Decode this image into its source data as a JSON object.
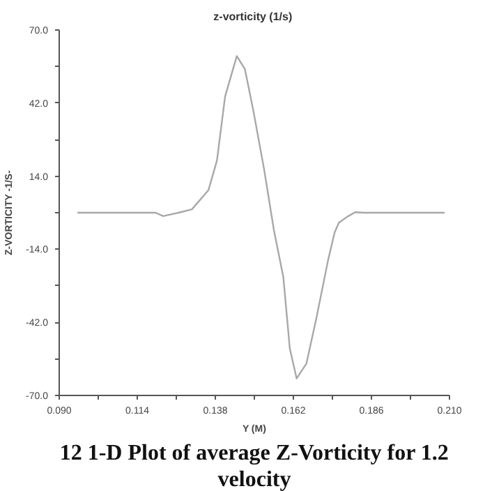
{
  "chart_data": {
    "type": "line",
    "title": "z-vorticity  (1/s)",
    "xlabel": "Y (M)",
    "ylabel": "Z-VORTICITY -1/S-",
    "annotations": [
      "12 1-D Plot of average Z-Vorticity for 1.2 velocity"
    ],
    "series": [
      {
        "color": "#a8a8a8",
        "x": [
          0.0956,
          0.1196,
          0.122,
          0.1267,
          0.1308,
          0.1359,
          0.1385,
          0.141,
          0.1446,
          0.1471,
          0.1497,
          0.153,
          0.156,
          0.1589,
          0.1609,
          0.163,
          0.166,
          0.169,
          0.1727,
          0.1747,
          0.176,
          0.1786,
          0.181,
          0.1838,
          0.2085
        ],
        "values": [
          0,
          0,
          -1.3,
          0,
          1.3,
          8.7,
          20,
          44.5,
          60,
          55,
          39,
          16.6,
          -6.6,
          -24.6,
          -52,
          -63.5,
          -57.8,
          -40.8,
          -18,
          -7.5,
          -3.8,
          -1.5,
          0.2,
          0,
          0
        ]
      }
    ],
    "xlim": [
      0.09,
      0.21
    ],
    "ylim": [
      -70,
      70
    ],
    "xticks": [
      {
        "value": 0.09,
        "label": "0.090"
      },
      {
        "value": 0.102,
        "label": null
      },
      {
        "value": 0.114,
        "label": "0.114"
      },
      {
        "value": 0.126,
        "label": null
      },
      {
        "value": 0.138,
        "label": "0.138"
      },
      {
        "value": 0.15,
        "label": null
      },
      {
        "value": 0.162,
        "label": "0.162"
      },
      {
        "value": 0.174,
        "label": null
      },
      {
        "value": 0.186,
        "label": "0.186"
      },
      {
        "value": 0.198,
        "label": null
      },
      {
        "value": 0.21,
        "label": "0.210"
      }
    ],
    "yticks": [
      {
        "value": -70,
        "label": "-70.0"
      },
      {
        "value": -56,
        "label": null
      },
      {
        "value": -42,
        "label": "-42.0"
      },
      {
        "value": -28,
        "label": null
      },
      {
        "value": -14,
        "label": "-14.0"
      },
      {
        "value": 0,
        "label": null
      },
      {
        "value": 14,
        "label": "14.0"
      },
      {
        "value": 28,
        "label": null
      },
      {
        "value": 42,
        "label": "42.0"
      },
      {
        "value": 56,
        "label": null
      },
      {
        "value": 70,
        "label": "70.0"
      }
    ],
    "grid": false,
    "marker": "none",
    "line_style": "solid"
  }
}
